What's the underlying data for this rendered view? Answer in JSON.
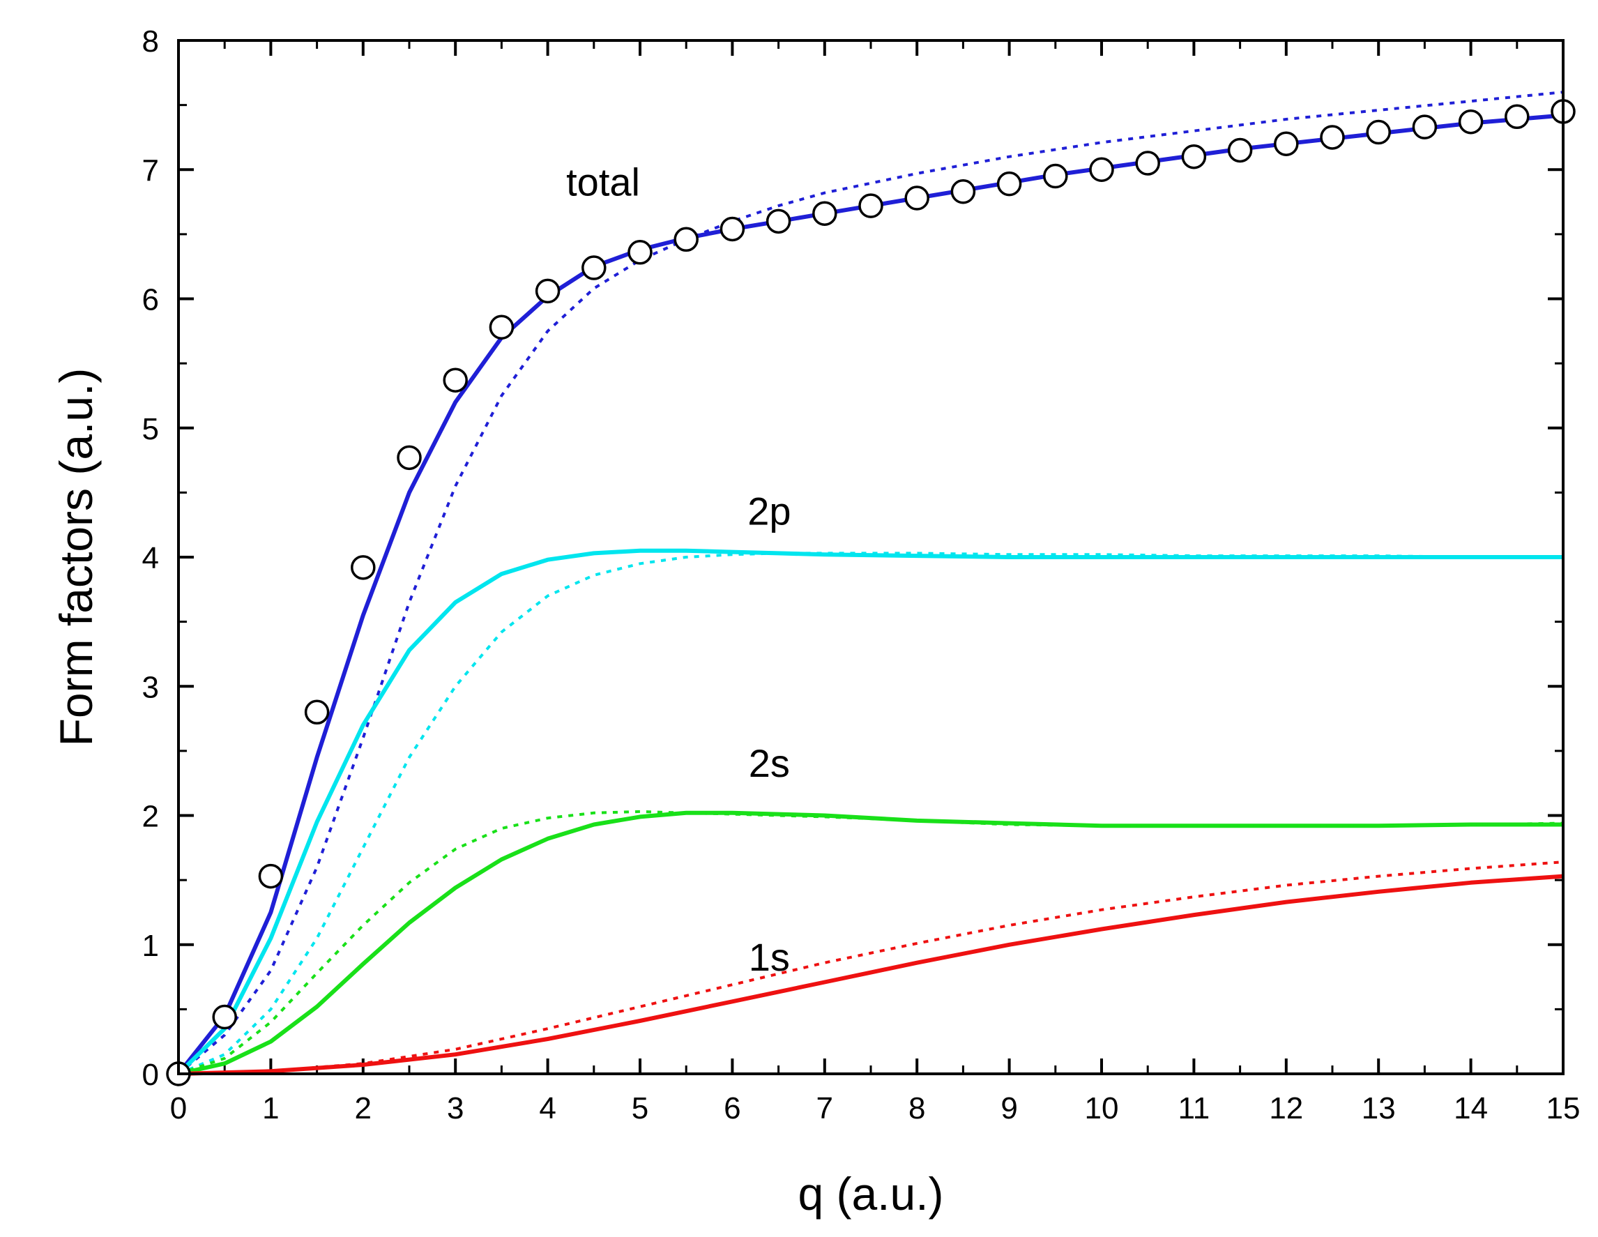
{
  "chart_data": {
    "type": "line",
    "title": "",
    "xlabel": "q (a.u.)",
    "ylabel": "Form factors (a.u.)",
    "xlim": [
      0,
      15
    ],
    "ylim": [
      0,
      8
    ],
    "xticks": [
      0,
      1,
      2,
      3,
      4,
      5,
      6,
      7,
      8,
      9,
      10,
      11,
      12,
      13,
      14,
      15
    ],
    "yticks": [
      0,
      1,
      2,
      3,
      4,
      5,
      6,
      7,
      8
    ],
    "grid": false,
    "legend": "none",
    "annotations": [
      {
        "text": "total",
        "x": 4.6,
        "y": 6.8
      },
      {
        "text": "2p",
        "x": 6.4,
        "y": 4.25
      },
      {
        "text": "2s",
        "x": 6.4,
        "y": 2.3
      },
      {
        "text": "1s",
        "x": 6.4,
        "y": 0.8
      }
    ],
    "series": [
      {
        "style": "solid",
        "color": "#1f1fd6",
        "x": [
          0,
          0.5,
          1,
          1.5,
          2,
          2.5,
          3,
          3.5,
          4,
          4.5,
          5,
          5.5,
          6,
          6.5,
          7,
          7.5,
          8,
          8.5,
          9,
          9.5,
          10,
          10.5,
          11,
          11.5,
          12,
          12.5,
          13,
          13.5,
          14,
          14.5,
          15
        ],
        "y": [
          0,
          0.45,
          1.25,
          2.45,
          3.55,
          4.5,
          5.2,
          5.7,
          6.02,
          6.25,
          6.38,
          6.47,
          6.54,
          6.6,
          6.66,
          6.72,
          6.78,
          6.84,
          6.9,
          6.96,
          7.01,
          7.06,
          7.11,
          7.16,
          7.2,
          7.24,
          7.28,
          7.32,
          7.36,
          7.39,
          7.42
        ]
      },
      {
        "style": "dotted",
        "color": "#1f1fd6",
        "x": [
          0,
          0.5,
          1,
          1.5,
          2,
          2.5,
          3,
          3.5,
          4,
          4.5,
          5,
          5.5,
          6,
          6.5,
          7,
          8,
          9,
          10,
          11,
          12,
          13,
          14,
          15
        ],
        "y": [
          0,
          0.3,
          0.8,
          1.6,
          2.6,
          3.65,
          4.55,
          5.25,
          5.75,
          6.08,
          6.3,
          6.46,
          6.6,
          6.72,
          6.82,
          6.97,
          7.1,
          7.21,
          7.3,
          7.39,
          7.46,
          7.53,
          7.6
        ]
      },
      {
        "style": "solid",
        "color": "#00e5ee",
        "x": [
          0,
          0.5,
          1,
          1.5,
          2,
          2.5,
          3,
          3.5,
          4,
          4.5,
          5,
          5.5,
          6,
          6.5,
          7,
          8,
          9,
          10,
          11,
          12,
          13,
          14,
          15
        ],
        "y": [
          0,
          0.35,
          1.05,
          1.95,
          2.7,
          3.28,
          3.65,
          3.87,
          3.98,
          4.03,
          4.05,
          4.05,
          4.04,
          4.03,
          4.02,
          4.01,
          4.0,
          4.0,
          4.0,
          4.0,
          4.0,
          4.0,
          4.0
        ]
      },
      {
        "style": "dotted",
        "color": "#00e5ee",
        "x": [
          0,
          0.5,
          1,
          1.5,
          2,
          2.5,
          3,
          3.5,
          4,
          4.5,
          5,
          5.5,
          6,
          6.5,
          7,
          8,
          9,
          10,
          11,
          12,
          13,
          14,
          15
        ],
        "y": [
          0,
          0.15,
          0.5,
          1.05,
          1.75,
          2.45,
          3.0,
          3.42,
          3.7,
          3.86,
          3.95,
          4.0,
          4.02,
          4.03,
          4.03,
          4.03,
          4.02,
          4.02,
          4.01,
          4.01,
          4.01,
          4.0,
          4.0
        ]
      },
      {
        "style": "solid",
        "color": "#19e019",
        "x": [
          0,
          0.5,
          1,
          1.5,
          2,
          2.5,
          3,
          3.5,
          4,
          4.5,
          5,
          5.5,
          6,
          6.5,
          7,
          8,
          9,
          10,
          11,
          12,
          13,
          14,
          15
        ],
        "y": [
          0,
          0.08,
          0.25,
          0.52,
          0.85,
          1.17,
          1.44,
          1.66,
          1.82,
          1.93,
          1.99,
          2.02,
          2.02,
          2.01,
          2.0,
          1.96,
          1.94,
          1.92,
          1.92,
          1.92,
          1.92,
          1.93,
          1.93
        ]
      },
      {
        "style": "dotted",
        "color": "#19e019",
        "x": [
          0,
          0.5,
          1,
          1.5,
          2,
          2.5,
          3,
          3.5,
          4,
          4.5,
          5,
          5.5,
          6,
          6.5,
          7,
          8,
          9,
          10,
          11,
          12,
          13,
          14,
          15
        ],
        "y": [
          0,
          0.12,
          0.4,
          0.78,
          1.15,
          1.48,
          1.74,
          1.9,
          1.98,
          2.02,
          2.03,
          2.02,
          2.01,
          2.0,
          1.99,
          1.96,
          1.93,
          1.92,
          1.92,
          1.92,
          1.92,
          1.93,
          1.94
        ]
      },
      {
        "style": "solid",
        "color": "#ee1111",
        "x": [
          0,
          1,
          2,
          3,
          4,
          5,
          6,
          7,
          8,
          9,
          10,
          11,
          12,
          13,
          14,
          15
        ],
        "y": [
          0,
          0.02,
          0.07,
          0.15,
          0.27,
          0.41,
          0.56,
          0.71,
          0.86,
          1.0,
          1.12,
          1.23,
          1.33,
          1.41,
          1.48,
          1.53
        ]
      },
      {
        "style": "dotted",
        "color": "#ee1111",
        "x": [
          0,
          1,
          2,
          3,
          4,
          5,
          6,
          7,
          8,
          9,
          10,
          11,
          12,
          13,
          14,
          15
        ],
        "y": [
          0,
          0.02,
          0.08,
          0.19,
          0.35,
          0.52,
          0.69,
          0.86,
          1.01,
          1.15,
          1.27,
          1.37,
          1.46,
          1.53,
          1.59,
          1.64
        ]
      },
      {
        "style": "markers",
        "marker": "open-circle",
        "color": "#000000",
        "x": [
          0,
          0.5,
          1,
          1.5,
          2,
          2.5,
          3,
          3.5,
          4,
          4.5,
          5,
          5.5,
          6,
          6.5,
          7,
          7.5,
          8,
          8.5,
          9,
          9.5,
          10,
          10.5,
          11,
          11.5,
          12,
          12.5,
          13,
          13.5,
          14,
          14.5,
          15
        ],
        "y": [
          0,
          0.44,
          1.53,
          2.8,
          3.92,
          4.77,
          5.37,
          5.78,
          6.06,
          6.24,
          6.36,
          6.46,
          6.54,
          6.6,
          6.66,
          6.72,
          6.78,
          6.83,
          6.89,
          6.95,
          7.0,
          7.05,
          7.1,
          7.15,
          7.2,
          7.25,
          7.29,
          7.33,
          7.37,
          7.41,
          7.45
        ]
      }
    ]
  }
}
